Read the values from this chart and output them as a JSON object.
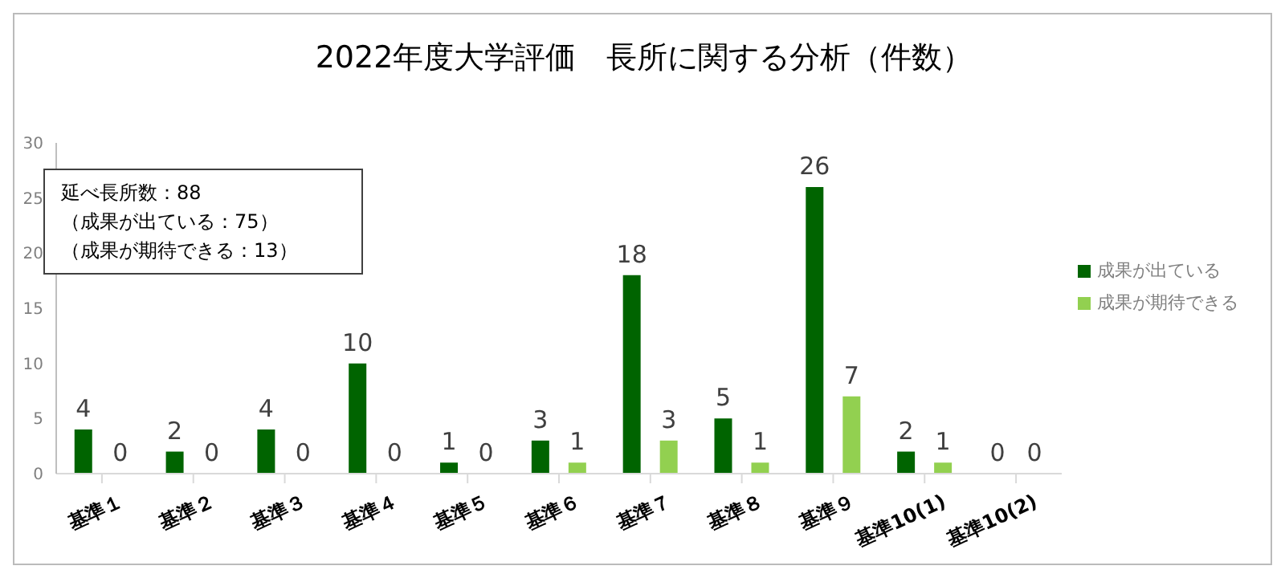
{
  "chart_data": {
    "type": "bar",
    "title": "2022年度大学評価　長所に関する分析（件数）",
    "categories": [
      "基準１",
      "基準２",
      "基準３",
      "基準４",
      "基準５",
      "基準６",
      "基準７",
      "基準８",
      "基準９",
      "基準10(1)",
      "基準10(2)"
    ],
    "series": [
      {
        "name": "成果が出ている",
        "color": "#006400",
        "values": [
          4,
          2,
          4,
          10,
          1,
          3,
          18,
          5,
          26,
          2,
          0
        ]
      },
      {
        "name": "成果が期待できる",
        "color": "#92d050",
        "values": [
          0,
          0,
          0,
          0,
          0,
          1,
          3,
          1,
          7,
          1,
          0
        ]
      }
    ],
    "ylim": [
      0,
      30
    ],
    "yticks": [
      0,
      5,
      10,
      15,
      20,
      25,
      30
    ],
    "grid": false,
    "legend": "right",
    "data_labels": true,
    "annotations": [
      "延べ長所数：88",
      "（成果が出ている：75）",
      "（成果が期待できる：13）"
    ]
  }
}
